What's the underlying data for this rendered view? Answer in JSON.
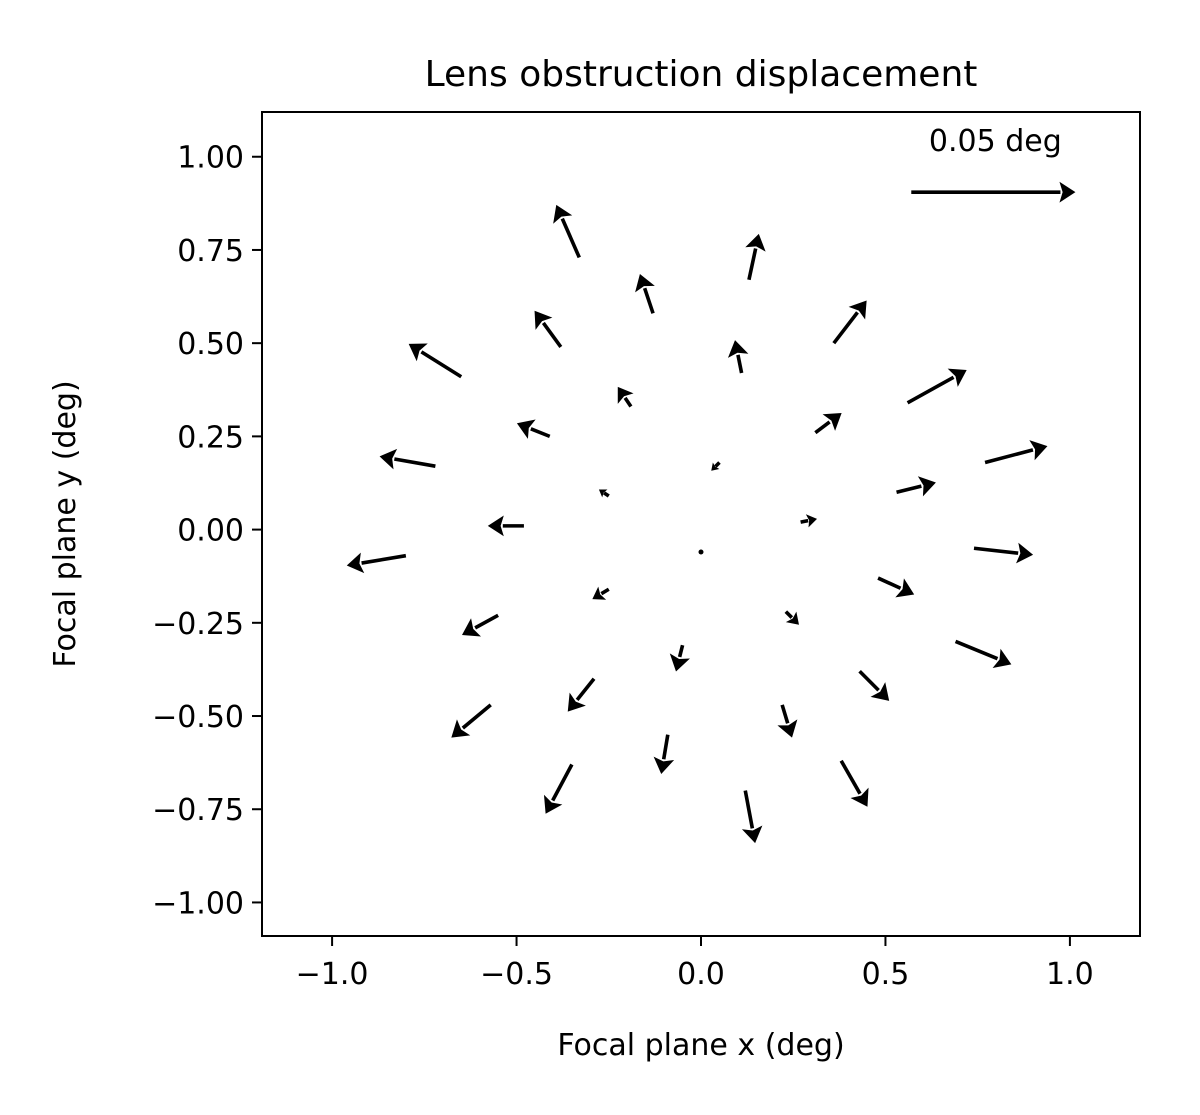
{
  "chart_data": {
    "type": "quiver",
    "title": "Lens obstruction displacement",
    "xlabel": "Focal plane x (deg)",
    "ylabel": "Focal plane y (deg)",
    "xlim": [
      -1.19,
      1.19
    ],
    "ylim": [
      -1.09,
      1.12
    ],
    "x_ticks": [
      -1.0,
      -0.5,
      0.0,
      0.5,
      1.0
    ],
    "x_tick_labels": [
      "−1.0",
      "−0.5",
      "0.0",
      "0.5",
      "1.0"
    ],
    "y_ticks": [
      1.0,
      0.75,
      0.5,
      0.25,
      0.0,
      -0.25,
      -0.5,
      -0.75,
      -1.0
    ],
    "y_tick_labels": [
      "1.00",
      "0.75",
      "0.50",
      "0.25",
      "0.00",
      "−0.25",
      "−0.50",
      "−0.75",
      "−1.00"
    ],
    "grid": false,
    "key": {
      "label": "0.05 deg",
      "x": 0.57,
      "y": 0.905,
      "length": 0.05
    },
    "arrows": [
      {
        "x": 0.0,
        "y": -0.06,
        "u": 0.0,
        "v": 0.0
      },
      {
        "x": 0.05,
        "y": 0.18,
        "u": -0.0025,
        "v": -0.0025
      },
      {
        "x": -0.25,
        "y": 0.09,
        "u": -0.003,
        "v": 0.002
      },
      {
        "x": 0.27,
        "y": 0.02,
        "u": 0.005,
        "v": 0.001
      },
      {
        "x": -0.25,
        "y": -0.16,
        "u": -0.005,
        "v": -0.003
      },
      {
        "x": 0.23,
        "y": -0.22,
        "u": 0.004,
        "v": -0.004
      },
      {
        "x": -0.05,
        "y": -0.31,
        "u": -0.002,
        "v": -0.008
      },
      {
        "x": -0.19,
        "y": 0.33,
        "u": -0.004,
        "v": 0.006
      },
      {
        "x": 0.11,
        "y": 0.42,
        "u": -0.002,
        "v": 0.01
      },
      {
        "x": 0.31,
        "y": 0.26,
        "u": 0.008,
        "v": 0.006
      },
      {
        "x": -0.41,
        "y": 0.25,
        "u": -0.01,
        "v": 0.004
      },
      {
        "x": 0.53,
        "y": 0.1,
        "u": 0.012,
        "v": 0.003
      },
      {
        "x": -0.48,
        "y": 0.01,
        "u": -0.011,
        "v": 0.0
      },
      {
        "x": 0.48,
        "y": -0.13,
        "u": 0.011,
        "v": -0.005
      },
      {
        "x": -0.29,
        "y": -0.4,
        "u": -0.008,
        "v": -0.01
      },
      {
        "x": 0.22,
        "y": -0.47,
        "u": 0.003,
        "v": -0.01
      },
      {
        "x": -0.09,
        "y": -0.55,
        "u": -0.002,
        "v": -0.012
      },
      {
        "x": -0.13,
        "y": 0.58,
        "u": -0.004,
        "v": 0.012
      },
      {
        "x": -0.38,
        "y": 0.49,
        "u": -0.008,
        "v": 0.011
      },
      {
        "x": 0.36,
        "y": 0.5,
        "u": 0.01,
        "v": 0.013
      },
      {
        "x": 0.56,
        "y": 0.34,
        "u": 0.018,
        "v": 0.01
      },
      {
        "x": -0.65,
        "y": 0.41,
        "u": -0.016,
        "v": 0.01
      },
      {
        "x": 0.77,
        "y": 0.18,
        "u": 0.019,
        "v": 0.005
      },
      {
        "x": -0.72,
        "y": 0.17,
        "u": -0.017,
        "v": 0.003
      },
      {
        "x": 0.74,
        "y": -0.05,
        "u": 0.018,
        "v": -0.002
      },
      {
        "x": -0.8,
        "y": -0.07,
        "u": -0.018,
        "v": -0.003
      },
      {
        "x": 0.69,
        "y": -0.3,
        "u": 0.017,
        "v": -0.007
      },
      {
        "x": -0.55,
        "y": -0.23,
        "u": -0.011,
        "v": -0.006
      },
      {
        "x": 0.43,
        "y": -0.38,
        "u": 0.009,
        "v": -0.009
      },
      {
        "x": -0.57,
        "y": -0.47,
        "u": -0.012,
        "v": -0.01
      },
      {
        "x": -0.35,
        "y": -0.63,
        "u": -0.008,
        "v": -0.015
      },
      {
        "x": 0.38,
        "y": -0.62,
        "u": 0.008,
        "v": -0.014
      },
      {
        "x": 0.12,
        "y": -0.7,
        "u": 0.003,
        "v": -0.016
      },
      {
        "x": -0.33,
        "y": 0.73,
        "u": -0.007,
        "v": 0.016
      },
      {
        "x": 0.13,
        "y": 0.67,
        "u": 0.003,
        "v": 0.014
      }
    ]
  }
}
